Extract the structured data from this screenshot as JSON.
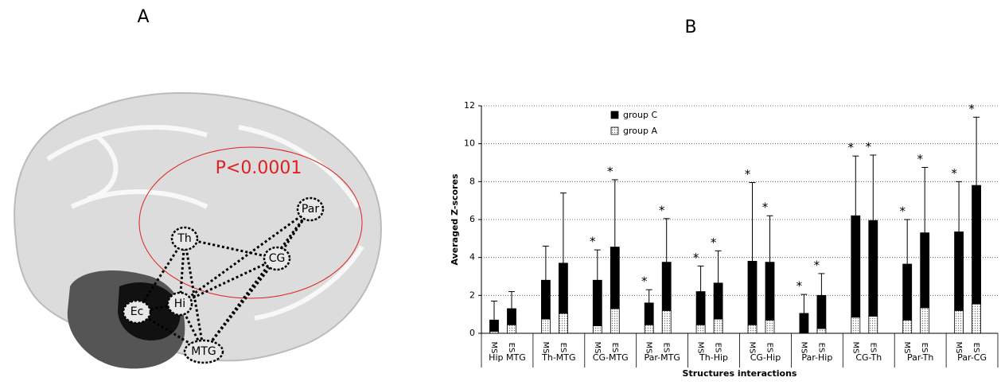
{
  "panel_labels": [
    "A",
    "B"
  ],
  "brain": {
    "annotation": "P<0.0001",
    "nodes": [
      "Par",
      "Th",
      "CG",
      "Hi",
      "Ec",
      "MTG"
    ]
  },
  "chart_data": {
    "type": "stacked-bar",
    "ylabel": "Averaged Z-scores",
    "xlabel": "Structures interactions",
    "groups": [
      "Hip MTG",
      "Th-MTG",
      "CG-MTG",
      "Par-MTG",
      "Th-Hip",
      "CG-Hip",
      "Par-Hip",
      "CG-Th",
      "Par-Th",
      "Par-CG"
    ],
    "categories": [
      "MS",
      "ES",
      "MS",
      "ES",
      "MS",
      "ES",
      "MS",
      "ES",
      "MS",
      "ES",
      "MS",
      "ES",
      "MS",
      "ES",
      "MS",
      "ES",
      "MS",
      "ES",
      "MS",
      "ES"
    ],
    "series": [
      {
        "name": "group A",
        "color": "#d9d9d9",
        "values": [
          0.1,
          0.45,
          0.75,
          1.05,
          0.4,
          1.3,
          0.45,
          1.2,
          0.45,
          0.75,
          0.45,
          0.7,
          0,
          0.25,
          0.85,
          0.9,
          0.7,
          1.35,
          1.2,
          1.55
        ]
      },
      {
        "name": "group C",
        "color": "#000000",
        "values": [
          0.6,
          0.85,
          2.05,
          2.65,
          2.4,
          3.25,
          1.15,
          2.55,
          1.75,
          1.9,
          3.35,
          3.05,
          1.05,
          1.75,
          5.35,
          5.05,
          2.95,
          3.95,
          4.15,
          6.25
        ],
        "errors": [
          1.0,
          0.9,
          1.8,
          3.7,
          1.6,
          3.55,
          0.7,
          2.3,
          1.35,
          1.7,
          4.15,
          2.45,
          1.0,
          1.15,
          3.15,
          3.45,
          2.35,
          3.45,
          2.65,
          3.6
        ]
      }
    ],
    "significance_marker": "*",
    "significant": [
      false,
      false,
      false,
      false,
      true,
      true,
      true,
      true,
      true,
      true,
      true,
      true,
      true,
      true,
      true,
      true,
      true,
      true,
      true,
      true
    ],
    "ylim": [
      0,
      12
    ],
    "yticks": [
      0,
      2,
      4,
      6,
      8,
      10,
      12
    ],
    "grid": true
  }
}
